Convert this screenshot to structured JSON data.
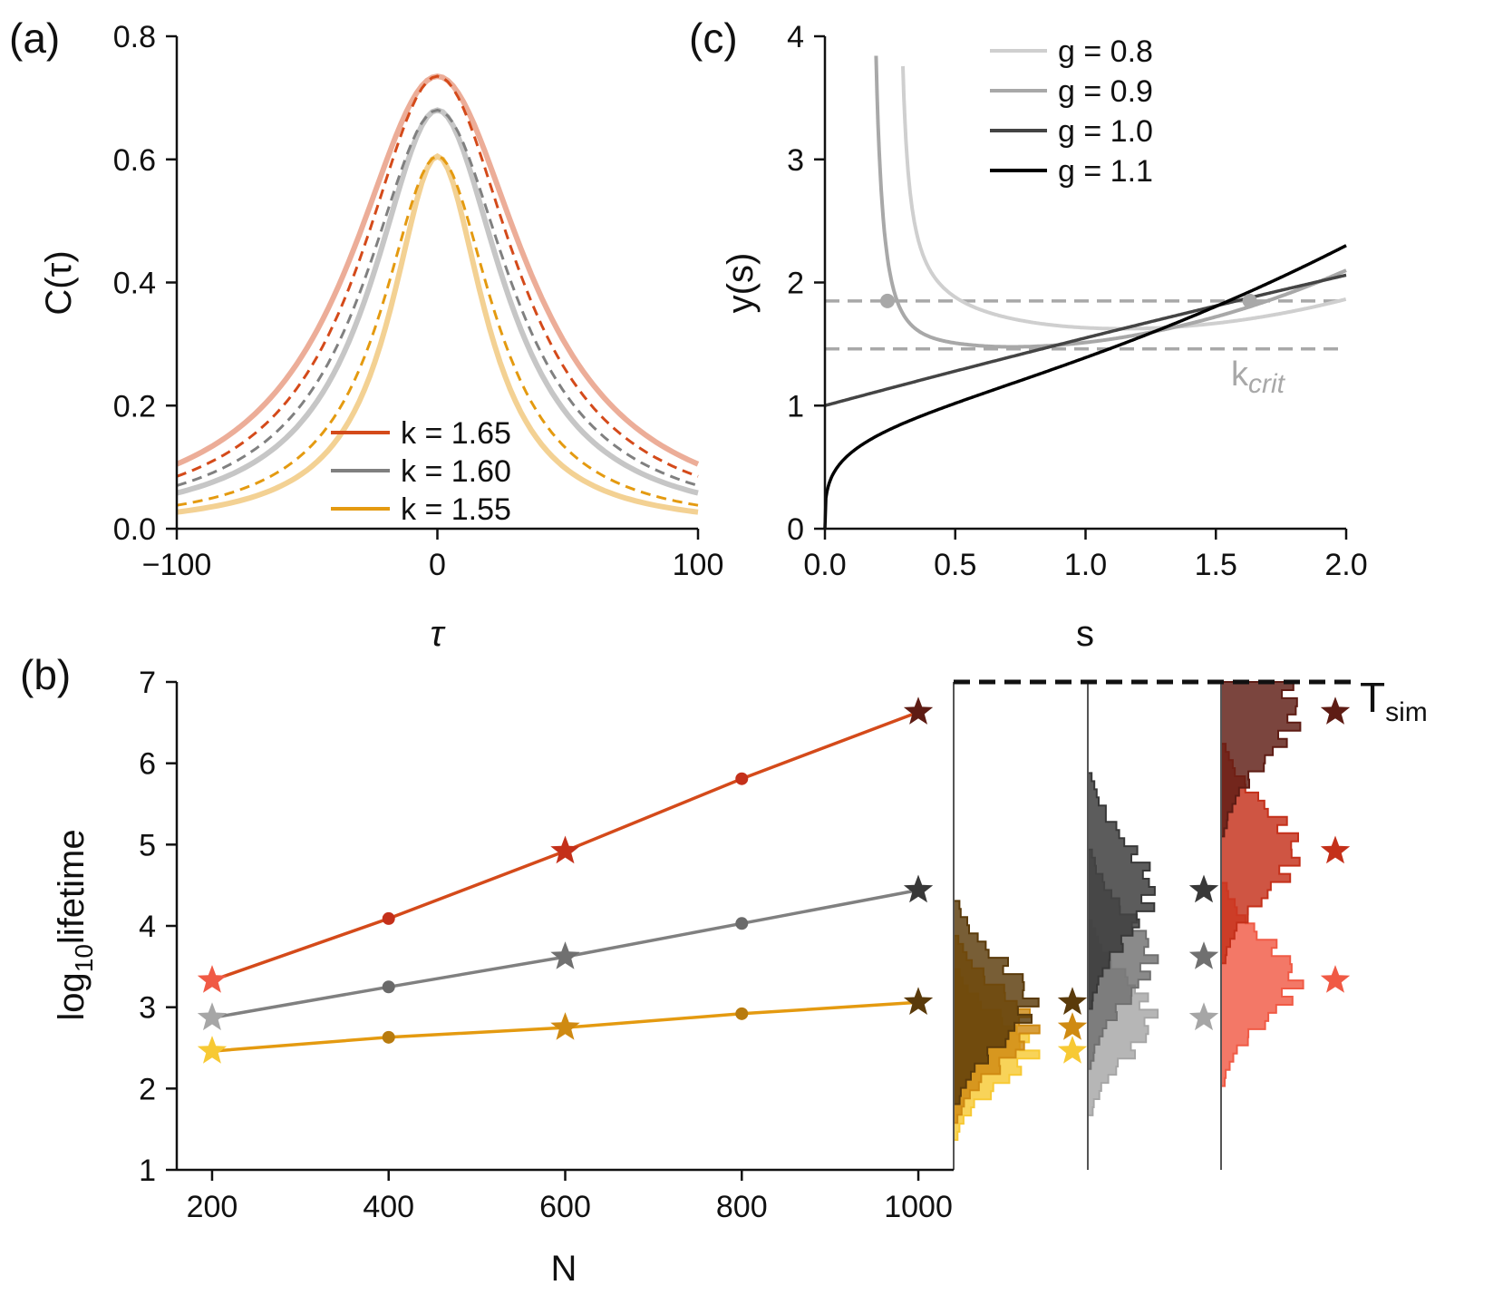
{
  "colors": {
    "k165": "#d44a1a",
    "k160": "#808080",
    "k155": "#e49a10",
    "g08": "#cfcfcf",
    "g09": "#a8a8a8",
    "g10": "#444444",
    "g11": "#000000"
  },
  "chart_data": [
    {
      "id": "a",
      "panel_label": "(a)",
      "type": "line",
      "xlabel": "τ",
      "ylabel": "C(τ)",
      "xlim": [
        -100,
        100
      ],
      "ylim": [
        0.0,
        0.8
      ],
      "xticks": [
        -100,
        0,
        100
      ],
      "xtick_labels": [
        "−100",
        "0",
        "100"
      ],
      "yticks": [
        0.0,
        0.2,
        0.4,
        0.6,
        0.8
      ],
      "ytick_labels": [
        "0.0",
        "0.2",
        "0.4",
        "0.6",
        "0.8"
      ],
      "legend_placement": "lower-center",
      "series": [
        {
          "name": "k = 1.65",
          "color_key": "k165",
          "peak": 0.735,
          "tail_solid": 0.105,
          "tail_dashed": 0.085
        },
        {
          "name": "k = 1.60",
          "color_key": "k160",
          "peak": 0.68,
          "tail_solid": 0.058,
          "tail_dashed": 0.07
        },
        {
          "name": "k = 1.55",
          "color_key": "k155",
          "peak": 0.605,
          "tail_solid": 0.027,
          "tail_dashed": 0.038
        }
      ]
    },
    {
      "id": "c",
      "panel_label": "(c)",
      "type": "line",
      "xlabel": "s",
      "ylabel": "y(s)",
      "xlim": [
        0.0,
        2.0
      ],
      "ylim": [
        0,
        4
      ],
      "xticks": [
        0.0,
        0.5,
        1.0,
        1.5,
        2.0
      ],
      "xtick_labels": [
        "0.0",
        "0.5",
        "1.0",
        "1.5",
        "2.0"
      ],
      "yticks": [
        0,
        1,
        2,
        3,
        4
      ],
      "ytick_labels": [
        "0",
        "1",
        "2",
        "3",
        "4"
      ],
      "legend_placement": "top-right",
      "hlines": [
        1.85,
        1.46
      ],
      "hline_label": "k",
      "hline_label_sub": "crit",
      "points": [
        {
          "x": 0.24,
          "y": 1.85
        },
        {
          "x": 1.63,
          "y": 1.85
        }
      ],
      "series": [
        {
          "name": "g = 0.8",
          "color_key": "g08",
          "asymptote": 0.27
        },
        {
          "name": "g = 0.9",
          "color_key": "g09",
          "asymptote": 0.14
        },
        {
          "name": "g = 1.0",
          "color_key": "g10",
          "start": 1.0
        },
        {
          "name": "g = 1.1",
          "color_key": "g11",
          "start": 0.0
        }
      ]
    },
    {
      "id": "b",
      "panel_label": "(b)",
      "type": "line",
      "xlabel": "N",
      "ylabel": "log",
      "ylabel_sub": "10",
      "ylabel_tail": "lifetime",
      "xlim": [
        160,
        1040
      ],
      "ylim": [
        1,
        7
      ],
      "xticks": [
        200,
        400,
        600,
        800,
        1000
      ],
      "xtick_labels": [
        "200",
        "400",
        "600",
        "800",
        "1000"
      ],
      "yticks": [
        1,
        2,
        3,
        4,
        5,
        6,
        7
      ],
      "ytick_labels": [
        "1",
        "2",
        "3",
        "4",
        "5",
        "6",
        "7"
      ],
      "x": [
        200,
        400,
        600,
        800,
        1000
      ],
      "series": [
        {
          "name": "k = 1.65",
          "color_key": "k165",
          "values": [
            3.33,
            4.09,
            4.92,
            5.81,
            6.63
          ],
          "star_colors": [
            "#f05a45",
            "#c4301a",
            "#5e1c14"
          ]
        },
        {
          "name": "k = 1.60",
          "color_key": "k160",
          "values": [
            2.87,
            3.25,
            3.62,
            4.03,
            4.44
          ],
          "star_colors": [
            "#a6a6a6",
            "#707070",
            "#383838"
          ]
        },
        {
          "name": "k = 1.55",
          "color_key": "k155",
          "values": [
            2.46,
            2.63,
            2.75,
            2.92,
            3.06
          ],
          "star_colors": [
            "#f7c934",
            "#cf8a12",
            "#5a3a0a"
          ]
        }
      ],
      "reference_line_value": 7.0,
      "reference_label": "T",
      "reference_label_sub": "sim"
    }
  ]
}
